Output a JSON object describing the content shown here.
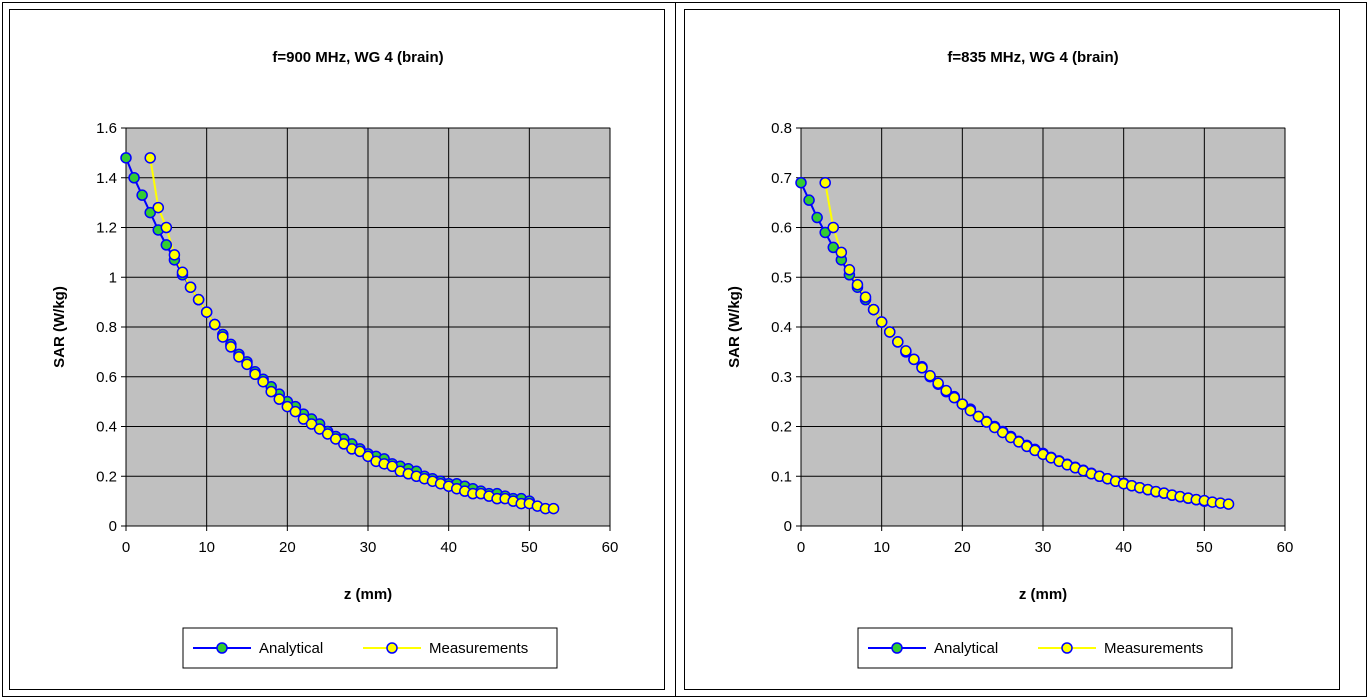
{
  "chart_data": [
    {
      "type": "scatter",
      "title": "f=900 MHz, WG 4 (brain)",
      "xlabel": "z (mm)",
      "ylabel": "SAR (W/kg)",
      "xlim": [
        0,
        60
      ],
      "ylim": [
        0,
        1.6
      ],
      "xticks": [
        0,
        10,
        20,
        30,
        40,
        50,
        60
      ],
      "yticks": [
        0,
        0.2,
        0.4,
        0.6,
        0.8,
        1,
        1.2,
        1.4,
        1.6
      ],
      "ytick_labels": [
        "0",
        "0.2",
        "0.4",
        "0.6",
        "0.8",
        "1",
        "1.2",
        "1.4",
        "1.6"
      ],
      "grid": true,
      "legend_position": "bottom",
      "series": [
        {
          "name": "Analytical",
          "line_color": "#0000ff",
          "marker_color": "#33cc33",
          "x": [
            0,
            1,
            2,
            3,
            4,
            5,
            6,
            7,
            8,
            9,
            10,
            11,
            12,
            13,
            14,
            15,
            16,
            17,
            18,
            19,
            20,
            21,
            22,
            23,
            24,
            25,
            26,
            27,
            28,
            29,
            30,
            31,
            32,
            33,
            34,
            35,
            36,
            37,
            38,
            39,
            40,
            41,
            42,
            43,
            44,
            45,
            46,
            47,
            48,
            49,
            50
          ],
          "y": [
            1.48,
            1.4,
            1.33,
            1.26,
            1.19,
            1.13,
            1.07,
            1.01,
            0.96,
            0.91,
            0.86,
            0.81,
            0.77,
            0.73,
            0.69,
            0.66,
            0.62,
            0.59,
            0.56,
            0.53,
            0.5,
            0.48,
            0.45,
            0.43,
            0.41,
            0.38,
            0.36,
            0.35,
            0.33,
            0.31,
            0.29,
            0.28,
            0.27,
            0.25,
            0.24,
            0.23,
            0.22,
            0.2,
            0.19,
            0.18,
            0.17,
            0.17,
            0.16,
            0.15,
            0.14,
            0.13,
            0.13,
            0.12,
            0.11,
            0.11,
            0.1
          ]
        },
        {
          "name": "Measurements",
          "line_color": "#ffff00",
          "marker_color": "#ffff00",
          "x": [
            3,
            4,
            5,
            6,
            7,
            8,
            9,
            10,
            11,
            12,
            13,
            14,
            15,
            16,
            17,
            18,
            19,
            20,
            21,
            22,
            23,
            24,
            25,
            26,
            27,
            28,
            29,
            30,
            31,
            32,
            33,
            34,
            35,
            36,
            37,
            38,
            39,
            40,
            41,
            42,
            43,
            44,
            45,
            46,
            47,
            48,
            49,
            50,
            51,
            52,
            53
          ],
          "y": [
            1.48,
            1.28,
            1.2,
            1.09,
            1.02,
            0.96,
            0.91,
            0.86,
            0.81,
            0.76,
            0.72,
            0.68,
            0.65,
            0.61,
            0.58,
            0.54,
            0.51,
            0.48,
            0.46,
            0.43,
            0.41,
            0.39,
            0.37,
            0.35,
            0.33,
            0.31,
            0.3,
            0.28,
            0.26,
            0.25,
            0.24,
            0.22,
            0.21,
            0.2,
            0.19,
            0.18,
            0.17,
            0.16,
            0.15,
            0.14,
            0.13,
            0.13,
            0.12,
            0.11,
            0.11,
            0.1,
            0.09,
            0.09,
            0.08,
            0.07,
            0.07
          ]
        }
      ]
    },
    {
      "type": "scatter",
      "title": "f=835 MHz, WG 4 (brain)",
      "xlabel": "z (mm)",
      "ylabel": "SAR (W/kg)",
      "xlim": [
        0,
        60
      ],
      "ylim": [
        0,
        0.8
      ],
      "xticks": [
        0,
        10,
        20,
        30,
        40,
        50,
        60
      ],
      "yticks": [
        0,
        0.1,
        0.2,
        0.3,
        0.4,
        0.5,
        0.6,
        0.7,
        0.8
      ],
      "ytick_labels": [
        "0",
        "0.1",
        "0.2",
        "0.3",
        "0.4",
        "0.5",
        "0.6",
        "0.7",
        "0.8"
      ],
      "grid": true,
      "legend_position": "bottom",
      "series": [
        {
          "name": "Analytical",
          "line_color": "#0000ff",
          "marker_color": "#33cc33",
          "x": [
            0,
            1,
            2,
            3,
            4,
            5,
            6,
            7,
            8,
            9,
            10,
            11,
            12,
            13,
            14,
            15,
            16,
            17,
            18,
            19,
            20,
            21,
            22,
            23,
            24,
            25,
            26,
            27,
            28,
            29,
            30,
            31,
            32,
            33,
            34,
            35,
            36,
            37,
            38,
            39,
            40,
            41,
            42,
            43,
            44,
            45,
            46,
            47,
            48,
            49,
            50
          ],
          "y": [
            0.69,
            0.655,
            0.62,
            0.59,
            0.56,
            0.535,
            0.505,
            0.48,
            0.455,
            0.435,
            0.41,
            0.39,
            0.37,
            0.35,
            0.335,
            0.32,
            0.3,
            0.285,
            0.27,
            0.26,
            0.245,
            0.235,
            0.22,
            0.21,
            0.2,
            0.19,
            0.18,
            0.17,
            0.162,
            0.154,
            0.146,
            0.138,
            0.131,
            0.124,
            0.118,
            0.112,
            0.106,
            0.1,
            0.095,
            0.09,
            0.086,
            0.081,
            0.077,
            0.073,
            0.069,
            0.066,
            0.062,
            0.059,
            0.056,
            0.053,
            0.05
          ]
        },
        {
          "name": "Measurements",
          "line_color": "#ffff00",
          "marker_color": "#ffff00",
          "x": [
            3,
            4,
            5,
            6,
            7,
            8,
            9,
            10,
            11,
            12,
            13,
            14,
            15,
            16,
            17,
            18,
            19,
            20,
            21,
            22,
            23,
            24,
            25,
            26,
            27,
            28,
            29,
            30,
            31,
            32,
            33,
            34,
            35,
            36,
            37,
            38,
            39,
            40,
            41,
            42,
            43,
            44,
            45,
            46,
            47,
            48,
            49,
            50,
            51,
            52,
            53
          ],
          "y": [
            0.69,
            0.6,
            0.55,
            0.515,
            0.485,
            0.46,
            0.435,
            0.41,
            0.39,
            0.37,
            0.352,
            0.335,
            0.318,
            0.302,
            0.287,
            0.272,
            0.258,
            0.245,
            0.232,
            0.22,
            0.209,
            0.198,
            0.188,
            0.178,
            0.169,
            0.16,
            0.152,
            0.144,
            0.137,
            0.13,
            0.123,
            0.117,
            0.111,
            0.105,
            0.1,
            0.095,
            0.09,
            0.085,
            0.081,
            0.077,
            0.073,
            0.069,
            0.066,
            0.062,
            0.059,
            0.056,
            0.053,
            0.051,
            0.048,
            0.046,
            0.044
          ]
        }
      ]
    }
  ]
}
